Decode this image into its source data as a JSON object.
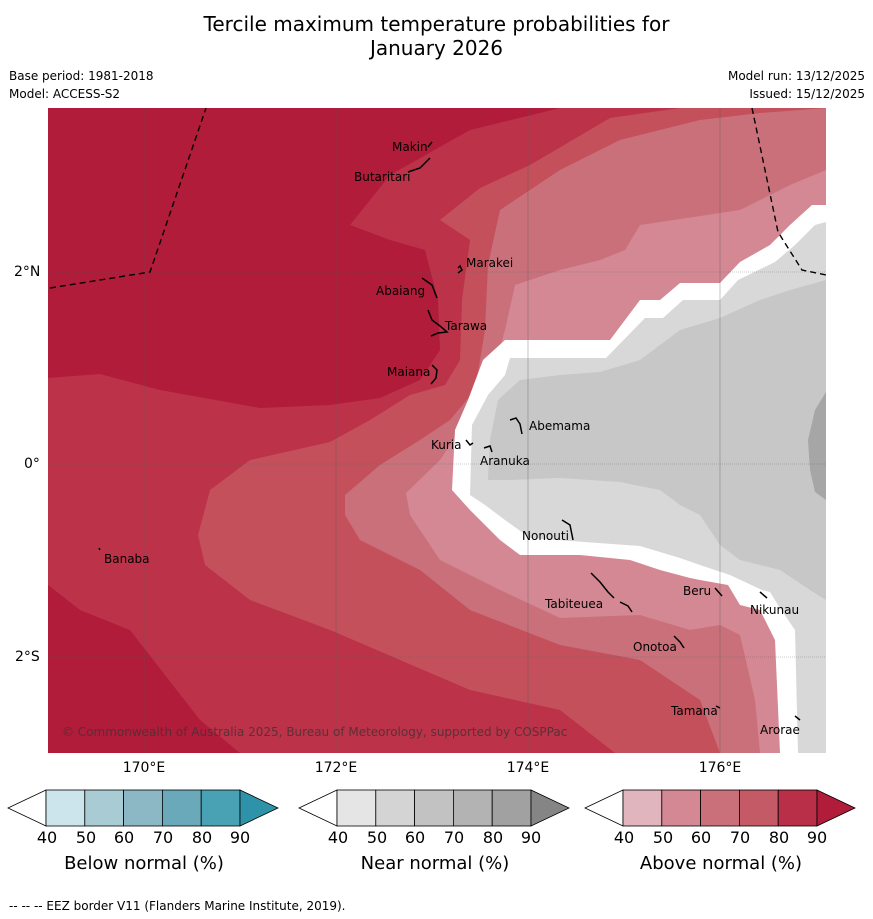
{
  "title_line1": "Tercile maximum temperature probabilities for",
  "title_line2": "January 2026",
  "meta_left": {
    "base_period": "Base period: 1981-2018",
    "model": "Model: ACCESS-S2"
  },
  "meta_right": {
    "model_run": "Model run: 13/12/2025",
    "issued": "Issued: 15/12/2025"
  },
  "lat_labels": [
    "2°N",
    "0°",
    "2°S"
  ],
  "lon_labels": [
    "170°E",
    "172°E",
    "174°E",
    "176°E"
  ],
  "islands": {
    "makin": "Makin",
    "butaritari": "Butaritari",
    "marakei": "Marakei",
    "abaiang": "Abaiang",
    "tarawa": "Tarawa",
    "maiana": "Maiana",
    "abemama": "Abemama",
    "kuria": "Kuria",
    "aranuka": "Aranuka",
    "nonouti": "Nonouti",
    "banaba": "Banaba",
    "beru": "Beru",
    "nikunau": "Nikunau",
    "tabiteuea": "Tabiteuea",
    "onotoa": "Onotoa",
    "tamana": "Tamana",
    "arorae": "Arorae"
  },
  "copyright": "© Commonwealth of Australia 2025, Bureau of Meteorology, supported by COSPPac",
  "colorbars": [
    {
      "title": "Below normal (%)",
      "ticks": [
        "40",
        "50",
        "60",
        "70",
        "80",
        "90"
      ],
      "colors": [
        "#ffffff",
        "#cce4eb",
        "#a9cbd3",
        "#8bb8c4",
        "#6aa9b9",
        "#48a2b3",
        "#2e93a8"
      ]
    },
    {
      "title": "Near normal (%)",
      "ticks": [
        "40",
        "50",
        "60",
        "70",
        "80",
        "90"
      ],
      "colors": [
        "#ffffff",
        "#e5e5e5",
        "#d4d4d4",
        "#c2c2c2",
        "#b3b3b3",
        "#a1a1a1",
        "#858585"
      ]
    },
    {
      "title": "Above normal (%)",
      "ticks": [
        "40",
        "50",
        "60",
        "70",
        "80",
        "90"
      ],
      "colors": [
        "#ffffff",
        "#e1b5bd",
        "#d48893",
        "#c9707b",
        "#c45a66",
        "#b82f47",
        "#b01c3a"
      ]
    }
  ],
  "footer": "--  --  -- EEZ border V11 (Flanders Marine Institute, 2019).",
  "map_colors": {
    "above_90": "#b01c3a",
    "above_80": "#bc3248",
    "above_70": "#c4505b",
    "above_60": "#c9707b",
    "above_50": "#d48893",
    "above_40": "#e1b5bd",
    "near_50": "#d8d8d8",
    "near_60": "#c7c7c7",
    "near_70": "#a6a6a6"
  }
}
